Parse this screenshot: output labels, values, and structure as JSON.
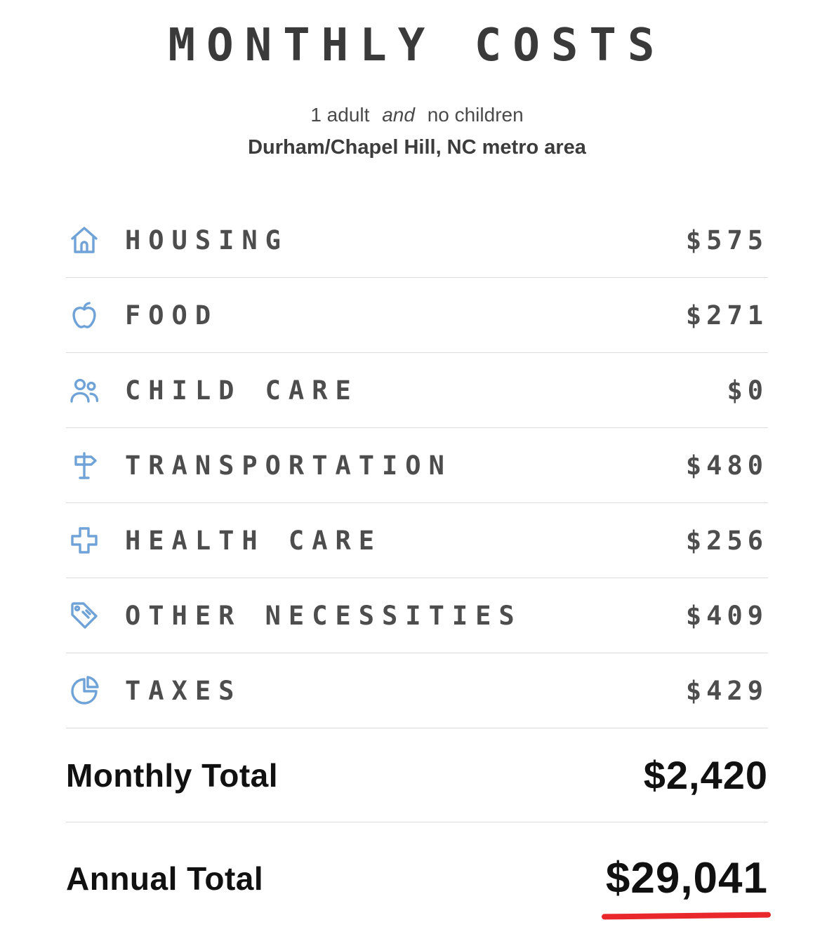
{
  "header": {
    "title": "MONTHLY COSTS",
    "subtitle": {
      "part1": "1 adult",
      "conjunction": "and",
      "part2": "no children"
    },
    "location": "Durham/Chapel Hill, NC metro area"
  },
  "costs": {
    "rows": [
      {
        "label": "HOUSING",
        "value": "$575",
        "icon": "house-icon"
      },
      {
        "label": "FOOD",
        "value": "$271",
        "icon": "apple-icon"
      },
      {
        "label": "CHILD CARE",
        "value": "$0",
        "icon": "people-icon"
      },
      {
        "label": "TRANSPORTATION",
        "value": "$480",
        "icon": "signpost-icon"
      },
      {
        "label": "HEALTH CARE",
        "value": "$256",
        "icon": "medical-cross-icon"
      },
      {
        "label": "OTHER NECESSITIES",
        "value": "$409",
        "icon": "tag-icon"
      },
      {
        "label": "TAXES",
        "value": "$429",
        "icon": "pie-chart-icon"
      }
    ],
    "monthly_total": {
      "label": "Monthly Total",
      "value": "$2,420"
    },
    "annual_total": {
      "label": "Annual Total",
      "value": "$29,041"
    }
  },
  "colors": {
    "icon_blue": "#6fa3d8",
    "row_text": "#4d4d4d",
    "accent_red": "#e8282b"
  }
}
